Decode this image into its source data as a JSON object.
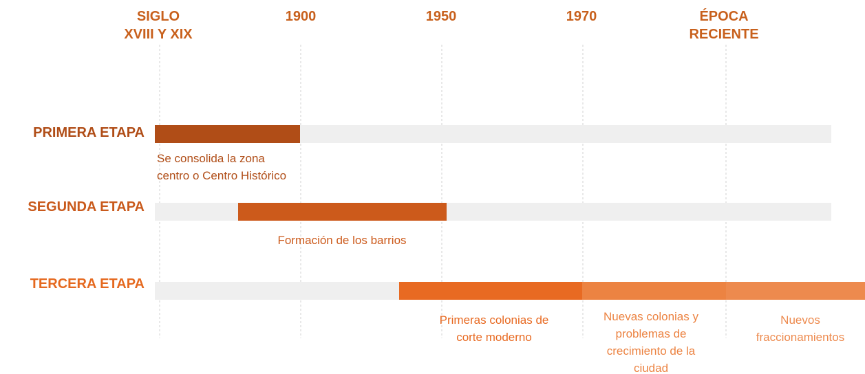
{
  "periods": [
    {
      "lines": [
        "SIGLO",
        "XVIII Y XIX"
      ]
    },
    {
      "lines": [
        "1900"
      ]
    },
    {
      "lines": [
        "1950"
      ]
    },
    {
      "lines": [
        "1970"
      ]
    },
    {
      "lines": [
        "ÉPOCA",
        "RECIENTE"
      ]
    }
  ],
  "stages": [
    {
      "label": "PRIMERA ETAPA",
      "segments": [
        {
          "description": [
            "Se consolida la zona",
            "centro o Centro Histórico"
          ]
        }
      ]
    },
    {
      "label": "SEGUNDA ETAPA",
      "segments": [
        {
          "description": [
            "Formación de los barrios"
          ]
        }
      ]
    },
    {
      "label": "TERCERA ETAPA",
      "segments": [
        {
          "description": [
            "Primeras colonias de",
            "corte moderno"
          ]
        },
        {
          "description": [
            "Nuevas colonias y",
            "problemas de",
            "crecimiento de la",
            "ciudad"
          ]
        },
        {
          "description": [
            "Nuevos",
            "fraccionamientos"
          ]
        }
      ]
    }
  ]
}
